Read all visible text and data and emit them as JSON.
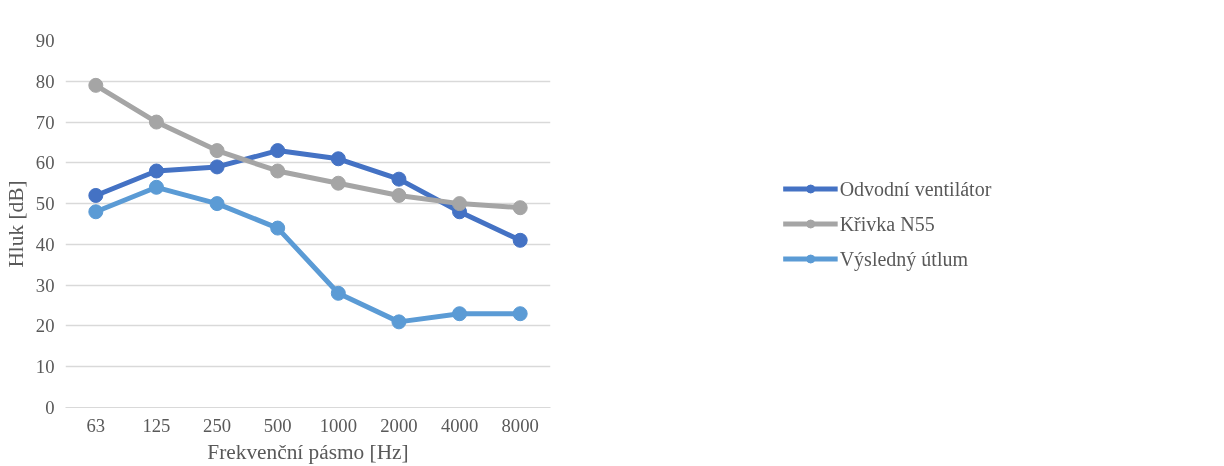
{
  "chart_data": {
    "type": "line",
    "xlabel": "Frekvenční pásmo [Hz]",
    "ylabel": "Hluk [dB]",
    "categories": [
      "63",
      "125",
      "250",
      "500",
      "1000",
      "2000",
      "4000",
      "8000"
    ],
    "series": [
      {
        "name": "Odvodní ventilátor",
        "color": "#4472c4",
        "values": [
          52,
          58,
          59,
          63,
          61,
          56,
          48,
          41
        ]
      },
      {
        "name": "Křivka N55",
        "color": "#a5a5a5",
        "values": [
          79,
          70,
          63,
          58,
          55,
          52,
          50,
          49
        ]
      },
      {
        "name": "Výsledný útlum",
        "color": "#5b9bd5",
        "values": [
          48,
          54,
          50,
          44,
          28,
          21,
          23,
          23
        ]
      }
    ],
    "ylim": [
      0,
      90
    ],
    "yticks": [
      0,
      10,
      20,
      30,
      40,
      50,
      60,
      70,
      80,
      90
    ],
    "grid": "y",
    "legend": "right",
    "marker": "circle",
    "line_style": "solid"
  }
}
